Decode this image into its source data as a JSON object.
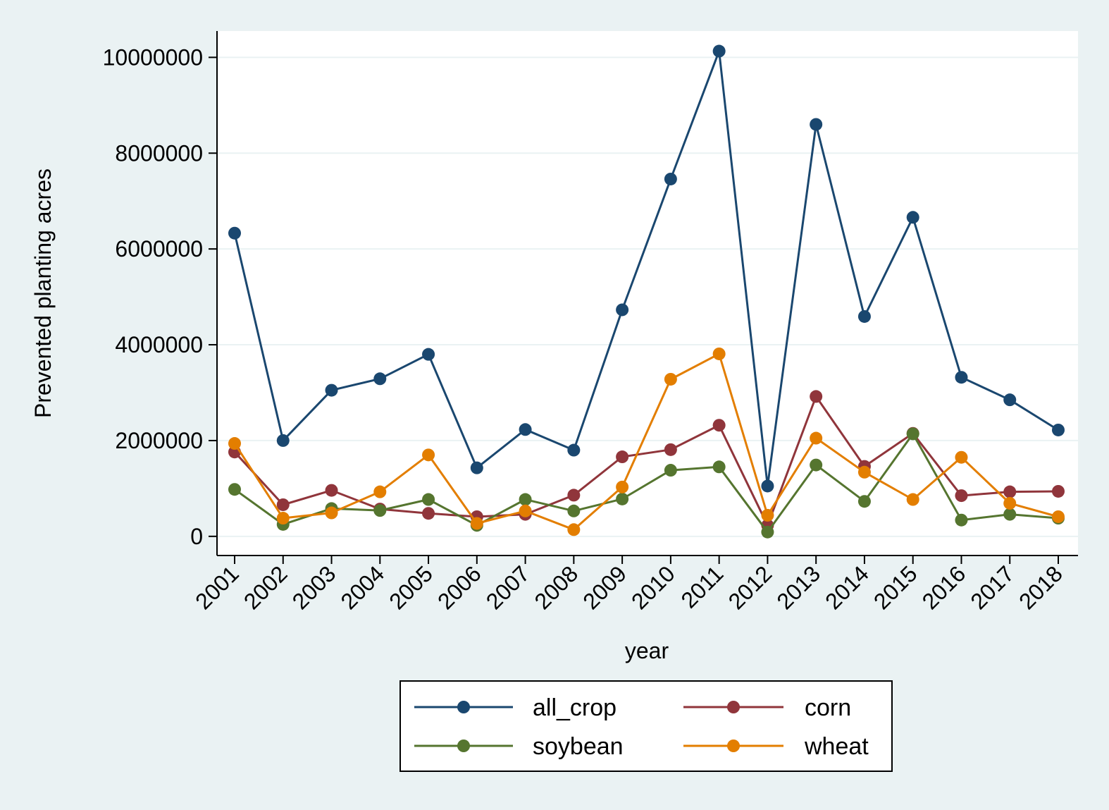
{
  "chart_data": {
    "type": "line",
    "title": "",
    "xlabel": "year",
    "ylabel": "Prevented planting acres",
    "categories": [
      "2001",
      "2002",
      "2003",
      "2004",
      "2005",
      "2006",
      "2007",
      "2008",
      "2009",
      "2010",
      "2011",
      "2012",
      "2013",
      "2014",
      "2015",
      "2016",
      "2017",
      "2018"
    ],
    "ylim": [
      -400000,
      10550000
    ],
    "yticks": [
      0,
      2000000,
      4000000,
      6000000,
      8000000,
      10000000
    ],
    "ytick_labels": [
      "0",
      "2000000",
      "4000000",
      "6000000",
      "8000000",
      "10000000"
    ],
    "grid": true,
    "legend_position": "bottom",
    "series": [
      {
        "name": "all_crop",
        "color": "#1a476f",
        "values": [
          6330000,
          2000000,
          3050000,
          3290000,
          3800000,
          1430000,
          2230000,
          1800000,
          4730000,
          7460000,
          10130000,
          1050000,
          8600000,
          4590000,
          6660000,
          3320000,
          2850000,
          2220000
        ]
      },
      {
        "name": "corn",
        "color": "#90353b",
        "values": [
          1760000,
          660000,
          960000,
          570000,
          480000,
          410000,
          460000,
          860000,
          1660000,
          1810000,
          2320000,
          230000,
          2920000,
          1460000,
          2150000,
          850000,
          930000,
          940000
        ]
      },
      {
        "name": "soybean",
        "color": "#55752f",
        "values": [
          980000,
          250000,
          580000,
          540000,
          770000,
          230000,
          770000,
          530000,
          780000,
          1380000,
          1450000,
          90000,
          1490000,
          730000,
          2140000,
          340000,
          460000,
          380000
        ]
      },
      {
        "name": "wheat",
        "color": "#e37e00",
        "values": [
          1940000,
          380000,
          490000,
          930000,
          1700000,
          270000,
          530000,
          140000,
          1030000,
          3280000,
          3810000,
          440000,
          2050000,
          1340000,
          770000,
          1650000,
          690000,
          410000
        ]
      }
    ]
  }
}
